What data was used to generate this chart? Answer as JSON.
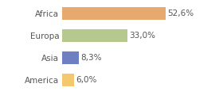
{
  "categories": [
    "America",
    "Asia",
    "Europa",
    "Africa"
  ],
  "values": [
    6.0,
    8.3,
    33.0,
    52.6
  ],
  "bar_colors": [
    "#f2c96e",
    "#6e7fc2",
    "#b5c98e",
    "#e8a96e"
  ],
  "label_texts": [
    "6,0%",
    "8,3%",
    "33,0%",
    "52,6%"
  ],
  "background_color": "#ffffff",
  "xlim": [
    0,
    68
  ],
  "bar_height": 0.58,
  "text_fontsize": 7.5,
  "label_fontsize": 7.5,
  "grid_color": "#e0e0e0",
  "text_color": "#555555"
}
